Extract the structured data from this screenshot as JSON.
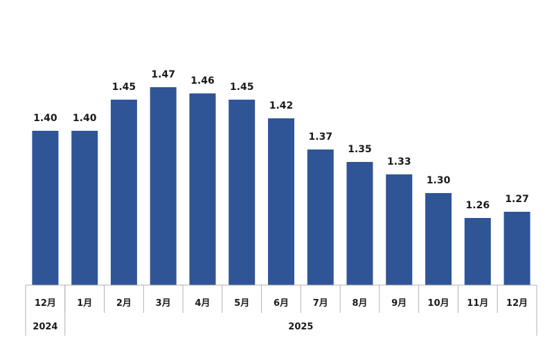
{
  "chart_data": {
    "type": "bar",
    "categories": [
      "12月",
      "1月",
      "2月",
      "3月",
      "4月",
      "5月",
      "6月",
      "7月",
      "8月",
      "9月",
      "10月",
      "11月",
      "12月"
    ],
    "values": [
      1.4,
      1.4,
      1.45,
      1.47,
      1.46,
      1.45,
      1.42,
      1.37,
      1.35,
      1.33,
      1.3,
      1.26,
      1.27
    ],
    "data_labels": [
      "1.40",
      "1.40",
      "1.45",
      "1.47",
      "1.46",
      "1.45",
      "1.42",
      "1.37",
      "1.35",
      "1.33",
      "1.30",
      "1.26",
      "1.27"
    ],
    "year_groups": [
      {
        "label": "2024",
        "count": 1
      },
      {
        "label": "2025",
        "count": 12
      }
    ],
    "ylim": [
      1.0,
      1.5
    ],
    "grid": false,
    "bar_color": "#2f5597",
    "axis_color": "#b0b0b0"
  }
}
